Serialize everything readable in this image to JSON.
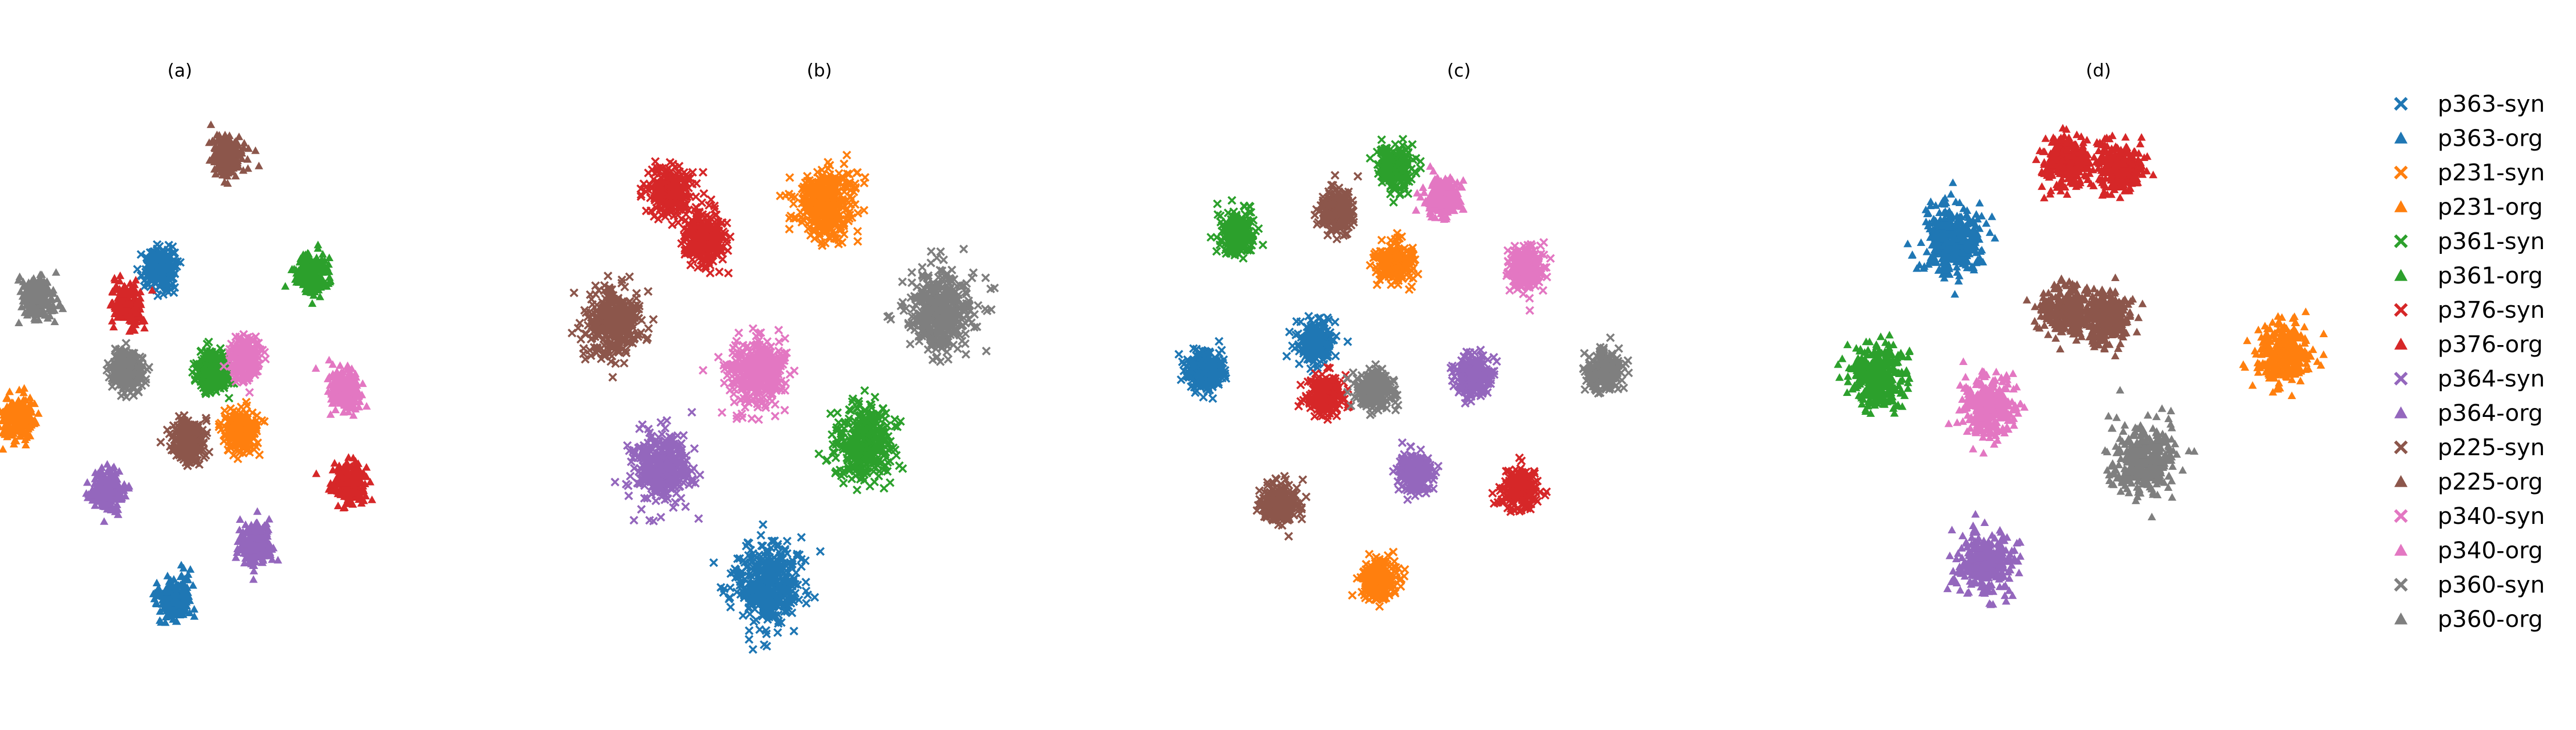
{
  "legend": {
    "entries": [
      {
        "label": "p363-syn",
        "color": "#1f77b4",
        "marker": "x"
      },
      {
        "label": "p363-org",
        "color": "#1f77b4",
        "marker": "triangle"
      },
      {
        "label": "p231-syn",
        "color": "#ff7f0e",
        "marker": "x"
      },
      {
        "label": "p231-org",
        "color": "#ff7f0e",
        "marker": "triangle"
      },
      {
        "label": "p361-syn",
        "color": "#2ca02c",
        "marker": "x"
      },
      {
        "label": "p361-org",
        "color": "#2ca02c",
        "marker": "triangle"
      },
      {
        "label": "p376-syn",
        "color": "#d62728",
        "marker": "x"
      },
      {
        "label": "p376-org",
        "color": "#d62728",
        "marker": "triangle"
      },
      {
        "label": "p364-syn",
        "color": "#9467bd",
        "marker": "x"
      },
      {
        "label": "p364-org",
        "color": "#9467bd",
        "marker": "triangle"
      },
      {
        "label": "p225-syn",
        "color": "#8c564b",
        "marker": "x"
      },
      {
        "label": "p225-org",
        "color": "#8c564b",
        "marker": "triangle"
      },
      {
        "label": "p340-syn",
        "color": "#e377c2",
        "marker": "x"
      },
      {
        "label": "p340-org",
        "color": "#e377c2",
        "marker": "triangle"
      },
      {
        "label": "p360-syn",
        "color": "#7f7f7f",
        "marker": "x"
      },
      {
        "label": "p360-org",
        "color": "#7f7f7f",
        "marker": "triangle"
      }
    ]
  },
  "chart_data": [
    {
      "type": "scatter",
      "title": "(a)",
      "axes_visible": false,
      "xlim": [
        0,
        100
      ],
      "ylim": [
        0,
        100
      ],
      "clusters": [
        {
          "series": "p225-org",
          "cx": 48,
          "cy": 88,
          "r": 4
        },
        {
          "series": "p360-org",
          "cx": 8,
          "cy": 64,
          "r": 4
        },
        {
          "series": "p363-syn",
          "cx": 34,
          "cy": 69,
          "r": 4
        },
        {
          "series": "p376-org",
          "cx": 27,
          "cy": 63,
          "r": 4
        },
        {
          "series": "p361-org",
          "cx": 66,
          "cy": 68,
          "r": 4
        },
        {
          "series": "p360-syn",
          "cx": 27,
          "cy": 52,
          "r": 4
        },
        {
          "series": "p361-syn",
          "cx": 45,
          "cy": 52,
          "r": 4
        },
        {
          "series": "p340-syn",
          "cx": 52,
          "cy": 54,
          "r": 4
        },
        {
          "series": "p340-org",
          "cx": 73,
          "cy": 49,
          "r": 4
        },
        {
          "series": "p231-org",
          "cx": 4,
          "cy": 44,
          "r": 4
        },
        {
          "series": "p225-syn",
          "cx": 40,
          "cy": 40,
          "r": 4
        },
        {
          "series": "p231-syn",
          "cx": 51,
          "cy": 42,
          "r": 4
        },
        {
          "series": "p364-org",
          "cx": 23,
          "cy": 32,
          "r": 4
        },
        {
          "series": "p376-org",
          "cx": 74,
          "cy": 33,
          "r": 4
        },
        {
          "series": "p364-org",
          "cx": 54,
          "cy": 23,
          "r": 4
        },
        {
          "series": "p363-org",
          "cx": 37,
          "cy": 14,
          "r": 4
        }
      ]
    },
    {
      "type": "scatter",
      "title": "(b)",
      "axes_visible": false,
      "xlim": [
        0,
        100
      ],
      "ylim": [
        0,
        100
      ],
      "clusters": [
        {
          "series": "p376-syn",
          "cx": 26,
          "cy": 82,
          "r": 5
        },
        {
          "series": "p376-syn",
          "cx": 33,
          "cy": 74,
          "r": 5
        },
        {
          "series": "p231-syn",
          "cx": 58,
          "cy": 80,
          "r": 7
        },
        {
          "series": "p225-syn",
          "cx": 14,
          "cy": 60,
          "r": 7
        },
        {
          "series": "p360-syn",
          "cx": 82,
          "cy": 62,
          "r": 8
        },
        {
          "series": "p340-syn",
          "cx": 44,
          "cy": 52,
          "r": 7
        },
        {
          "series": "p361-syn",
          "cx": 66,
          "cy": 40,
          "r": 7
        },
        {
          "series": "p364-syn",
          "cx": 24,
          "cy": 36,
          "r": 7
        },
        {
          "series": "p363-syn",
          "cx": 46,
          "cy": 16,
          "r": 8
        }
      ]
    },
    {
      "type": "scatter",
      "title": "(c)",
      "axes_visible": false,
      "xlim": [
        0,
        100
      ],
      "ylim": [
        0,
        100
      ],
      "clusters": [
        {
          "series": "p361-syn",
          "cx": 40,
          "cy": 86,
          "r": 4
        },
        {
          "series": "p340-org",
          "cx": 49,
          "cy": 81,
          "r": 4
        },
        {
          "series": "p225-syn",
          "cx": 29,
          "cy": 79,
          "r": 4
        },
        {
          "series": "p361-syn",
          "cx": 10,
          "cy": 75,
          "r": 4
        },
        {
          "series": "p231-syn",
          "cx": 40,
          "cy": 70,
          "r": 4
        },
        {
          "series": "p340-syn",
          "cx": 65,
          "cy": 69,
          "r": 4
        },
        {
          "series": "p363-syn",
          "cx": 25,
          "cy": 57,
          "r": 4
        },
        {
          "series": "p363-syn",
          "cx": 4,
          "cy": 52,
          "r": 4
        },
        {
          "series": "p376-syn",
          "cx": 27,
          "cy": 48,
          "r": 4
        },
        {
          "series": "p360-syn",
          "cx": 36,
          "cy": 49,
          "r": 4
        },
        {
          "series": "p364-syn",
          "cx": 55,
          "cy": 51,
          "r": 4
        },
        {
          "series": "p360-syn",
          "cx": 80,
          "cy": 52,
          "r": 4
        },
        {
          "series": "p364-syn",
          "cx": 44,
          "cy": 35,
          "r": 4
        },
        {
          "series": "p376-syn",
          "cx": 64,
          "cy": 32,
          "r": 4
        },
        {
          "series": "p225-syn",
          "cx": 18,
          "cy": 30,
          "r": 4
        },
        {
          "series": "p231-syn",
          "cx": 37,
          "cy": 17,
          "r": 4
        }
      ]
    },
    {
      "type": "scatter",
      "title": "(d)",
      "axes_visible": false,
      "xlim": [
        0,
        100
      ],
      "ylim": [
        0,
        100
      ],
      "clusters": [
        {
          "series": "p376-org",
          "cx": 45,
          "cy": 87,
          "r": 5
        },
        {
          "series": "p376-org",
          "cx": 55,
          "cy": 86,
          "r": 5
        },
        {
          "series": "p363-org",
          "cx": 24,
          "cy": 74,
          "r": 7
        },
        {
          "series": "p225-org",
          "cx": 45,
          "cy": 62,
          "r": 5
        },
        {
          "series": "p225-org",
          "cx": 53,
          "cy": 61,
          "r": 5
        },
        {
          "series": "p231-org",
          "cx": 86,
          "cy": 55,
          "r": 6
        },
        {
          "series": "p361-org",
          "cx": 10,
          "cy": 51,
          "r": 6
        },
        {
          "series": "p340-org",
          "cx": 31,
          "cy": 46,
          "r": 6
        },
        {
          "series": "p360-org",
          "cx": 60,
          "cy": 37,
          "r": 7
        },
        {
          "series": "p364-org",
          "cx": 30,
          "cy": 20,
          "r": 6
        }
      ]
    }
  ]
}
